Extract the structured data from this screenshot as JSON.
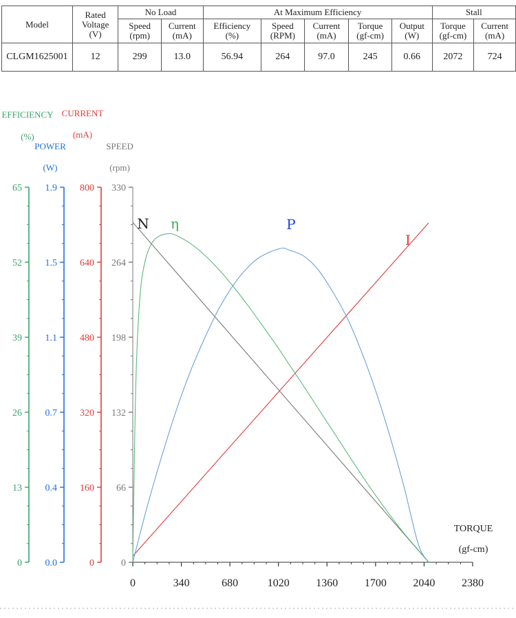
{
  "spec_table": {
    "model_header": "Model",
    "rated_header": [
      "Rated",
      "Voltage",
      "(V)"
    ],
    "groups": {
      "no_load": "No Load",
      "max_eff": "At Maximum Efficiency",
      "stall": "Stall"
    },
    "subheaders": {
      "nl_speed": [
        "Speed",
        "(rpm)"
      ],
      "nl_current": [
        "Current",
        "(mA)"
      ],
      "me_eff": [
        "Efficiency",
        "(%)"
      ],
      "me_speed": [
        "Speed",
        "(RPM)"
      ],
      "me_current": [
        "Current",
        "(mA)"
      ],
      "me_torque": [
        "Torque",
        "(gf-cm)"
      ],
      "me_output": [
        "Output",
        "(W)"
      ],
      "st_torque": [
        "Torque",
        "(gf-cm)"
      ],
      "st_current": [
        "Current",
        "(mA)"
      ]
    },
    "row": {
      "model": "CLGM1625001",
      "voltage": "12",
      "nl_speed": "299",
      "nl_current": "13.0",
      "me_eff": "56.94",
      "me_speed": "264",
      "me_current": "97.0",
      "me_torque": "245",
      "me_output": "0.66",
      "st_torque": "2072",
      "st_current": "724"
    }
  },
  "chart_data": {
    "type": "line",
    "x": {
      "label": [
        "TORQUE",
        "(gf-cm)"
      ],
      "range": [
        0,
        2380
      ],
      "ticks": [
        "0",
        "340",
        "680",
        "1020",
        "1360",
        "1700",
        "2040",
        "2380"
      ]
    },
    "axes": {
      "efficiency": {
        "label": [
          "EFFICIENCY",
          "(%)"
        ],
        "color": "#3aa36a",
        "range": [
          0,
          65
        ],
        "ticks": [
          "0",
          "13",
          "26",
          "39",
          "52",
          "65"
        ]
      },
      "power": {
        "label": [
          "POWER",
          "(W)"
        ],
        "color": "#1e6fd9",
        "range": [
          0,
          1.9
        ],
        "ticks": [
          "0.0",
          "0.4",
          "0.7",
          "1.1",
          "1.5",
          "1.9"
        ]
      },
      "current": {
        "label": [
          "CURRENT",
          "(mA)"
        ],
        "color": "#e03a3a",
        "range": [
          0,
          800
        ],
        "ticks": [
          "0",
          "160",
          "320",
          "480",
          "640",
          "800"
        ]
      },
      "speed": {
        "label": [
          "SPEED",
          "(rpm)"
        ],
        "color": "#777777",
        "range": [
          0,
          330
        ],
        "ticks": [
          "0",
          "66",
          "132",
          "198",
          "264",
          "330"
        ]
      }
    },
    "series": [
      {
        "name": "N",
        "axis": "speed",
        "color": "#777777",
        "x": [
          0,
          2072
        ],
        "y": [
          299,
          0
        ]
      },
      {
        "name": "I",
        "axis": "current",
        "color": "#e03a3a",
        "x": [
          0,
          2072
        ],
        "y": [
          13,
          724
        ]
      },
      {
        "name": "P",
        "axis": "power",
        "color": "#6a9fd8",
        "x": [
          0,
          100,
          200,
          300,
          400,
          500,
          600,
          700,
          800,
          900,
          1036,
          1100,
          1200,
          1300,
          1400,
          1500,
          1600,
          1700,
          1800,
          1900,
          2000,
          2072
        ],
        "y": [
          0,
          0.28,
          0.53,
          0.76,
          0.96,
          1.13,
          1.28,
          1.4,
          1.49,
          1.55,
          1.59,
          1.58,
          1.55,
          1.48,
          1.37,
          1.24,
          1.07,
          0.87,
          0.64,
          0.38,
          0.09,
          0
        ]
      },
      {
        "name": "η",
        "axis": "efficiency",
        "color": "#5cb87e",
        "x": [
          0,
          10,
          25,
          50,
          80,
          120,
          170,
          245,
          300,
          400,
          500,
          600,
          700,
          800,
          900,
          1000,
          1100,
          1200,
          1300,
          1400,
          1500,
          1600,
          1700,
          1800,
          1900,
          2000,
          2072
        ],
        "y": [
          0,
          16.5,
          34.0,
          46.0,
          51.5,
          54.7,
          56.3,
          56.94,
          56.7,
          55.3,
          53.3,
          50.8,
          47.9,
          44.7,
          41.3,
          37.8,
          34.1,
          30.4,
          26.6,
          22.8,
          19.0,
          15.2,
          11.6,
          8.2,
          5.0,
          2.1,
          0
        ]
      }
    ]
  }
}
